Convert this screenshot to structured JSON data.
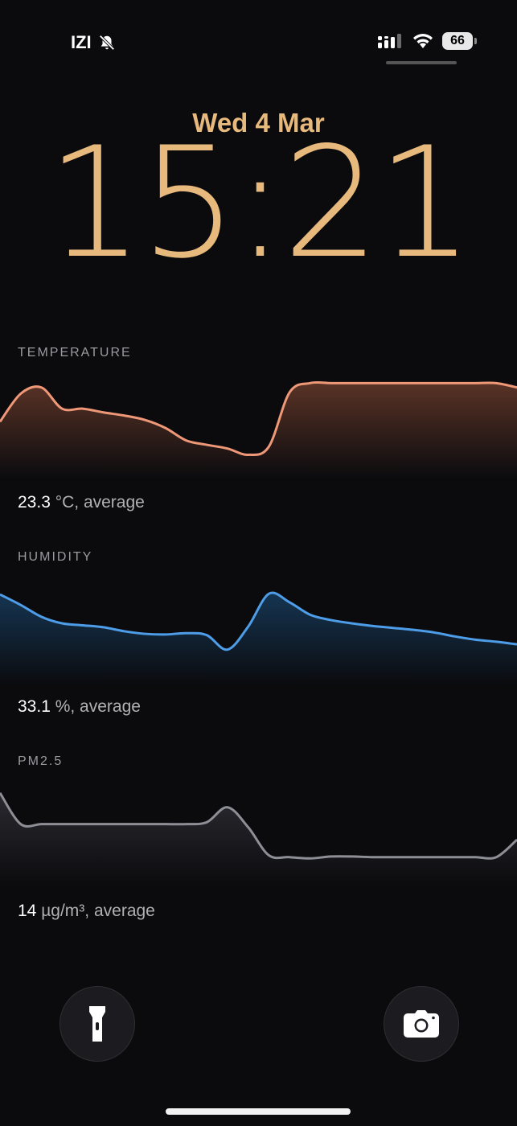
{
  "status_bar": {
    "carrier": "IZI",
    "silent_icon": "bell-slash-icon",
    "signal_icon": "cellular-signal-icon",
    "wifi_icon": "wifi-icon",
    "battery_level": "66"
  },
  "lock_screen": {
    "date": "Wed 4 Mar",
    "time": "15:21"
  },
  "widgets": [
    {
      "label": "TEMPERATURE",
      "average_value": "23.3",
      "average_suffix": " °C, average",
      "color": "#ef9878",
      "fill_top": "#5a3326",
      "chart_data": {
        "type": "area",
        "title": "",
        "values": [
          0.45,
          0.9,
          1.0,
          0.66,
          0.66,
          0.6,
          0.55,
          0.48,
          0.35,
          0.15,
          0.08,
          0.02,
          -0.08,
          0.05,
          0.92,
          1.07,
          1.07,
          1.07,
          1.07,
          1.07,
          1.07,
          1.07,
          1.07,
          1.07,
          1.07,
          1.0
        ]
      }
    },
    {
      "label": "HUMIDITY",
      "average_value": "33.1",
      "average_suffix": " %, average",
      "color": "#4e9de8",
      "fill_top": "#153552",
      "chart_data": {
        "type": "area",
        "title": "",
        "values": [
          0.94,
          0.78,
          0.6,
          0.5,
          0.47,
          0.44,
          0.38,
          0.34,
          0.33,
          0.35,
          0.32,
          0.1,
          0.45,
          0.95,
          0.82,
          0.63,
          0.55,
          0.5,
          0.46,
          0.43,
          0.4,
          0.36,
          0.3,
          0.25,
          0.22,
          0.18
        ]
      }
    },
    {
      "label": "PM2.5",
      "average_value": "14",
      "average_suffix": " µg/m³, average",
      "color": "#8e8e96",
      "fill_top": "#2a2a30",
      "chart_data": {
        "type": "area",
        "title": "",
        "values": [
          1.05,
          0.55,
          0.55,
          0.55,
          0.55,
          0.55,
          0.55,
          0.55,
          0.55,
          0.55,
          0.58,
          0.82,
          0.5,
          0.05,
          0.02,
          0.0,
          0.03,
          0.03,
          0.02,
          0.02,
          0.02,
          0.02,
          0.02,
          0.02,
          0.02,
          0.3
        ]
      }
    }
  ],
  "actions": {
    "flashlight_icon": "flashlight-icon",
    "camera_icon": "camera-icon"
  }
}
